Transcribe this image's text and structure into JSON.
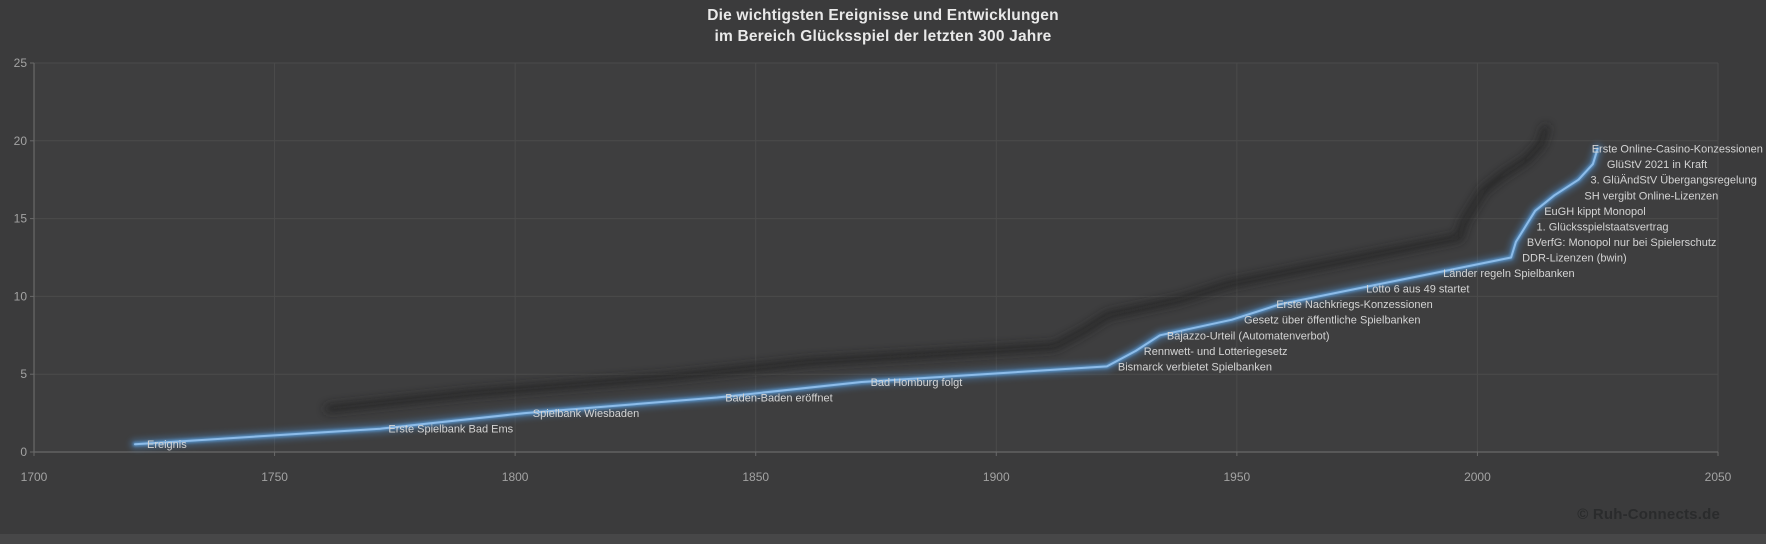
{
  "title": {
    "line1": "Die wichtigsten Ereignisse und Entwicklungen",
    "line2": "im Bereich Glücksspiel der letzten 300 Jahre"
  },
  "footer": {
    "copyright": "© Ruh-Connects.de"
  },
  "chart_data": {
    "type": "line",
    "title": "Die wichtigsten Ereignisse und Entwicklungen im Bereich Glücksspiel der letzten 300 Jahre",
    "xlabel": "",
    "ylabel": "",
    "xlim": [
      1700,
      2050
    ],
    "ylim": [
      0,
      25
    ],
    "x_ticks": [
      1700,
      1750,
      1800,
      1850,
      1900,
      1950,
      2000,
      2050
    ],
    "y_ticks": [
      0,
      5,
      10,
      15,
      20,
      25
    ],
    "grid": true,
    "legend_position": "none",
    "series": [
      {
        "name": "Ereignis",
        "points": [
          {
            "year": 1721,
            "value": 0.5,
            "label": "Ereignis"
          },
          {
            "year": 1772,
            "value": 1.5,
            "label": "Erste Spielbank Bad Ems"
          },
          {
            "year": 1802,
            "value": 2.5,
            "label": "Spielbank Wiesbaden"
          },
          {
            "year": 1842,
            "value": 3.5,
            "label": "Baden-Baden eröffnet"
          },
          {
            "year": 1872,
            "value": 4.5,
            "label": "Bad Homburg folgt"
          },
          {
            "year": 1923,
            "value": 5.5,
            "label": "Bismarck verbietet Spielbanken"
          },
          {
            "year": 1929,
            "value": 6.5,
            "label": "Rennwett- und Lotteriegesetz"
          },
          {
            "year": 1934,
            "value": 7.5,
            "label": "Bajazzo-Urteil (Automatenverbot)"
          },
          {
            "year": 1949,
            "value": 8.5,
            "label": "Gesetz über öffentliche Spielbanken"
          },
          {
            "year": 1959,
            "value": 9.5,
            "label": "Erste Nachkriegs-Konzessionen"
          },
          {
            "year": 1975,
            "value": 10.5,
            "label": "Lotto 6 aus 49 startet"
          },
          {
            "year": 1991,
            "value": 11.5,
            "label": "Länder regeln Spielbanken"
          },
          {
            "year": 2007,
            "value": 12.5,
            "label": "DDR-Lizenzen (bwin)"
          },
          {
            "year": 2008,
            "value": 13.5,
            "label": "BVerfG: Monopol nur bei Spielerschutz"
          },
          {
            "year": 2010,
            "value": 14.5,
            "label": "1. Glücksspielstaatsvertrag"
          },
          {
            "year": 2012,
            "value": 15.5,
            "label": "EuGH kippt Monopol"
          },
          {
            "year": 2016,
            "value": 16.5,
            "label": "SH vergibt Online-Lizenzen"
          },
          {
            "year": 2021,
            "value": 17.5,
            "label": "3. GlüÄndStV Übergangsregelung"
          },
          {
            "year": 2024,
            "value": 18.5,
            "label": "GlüStV 2021 in Kraft"
          },
          {
            "year": 2025,
            "value": 19.5,
            "label": "Erste Online-Casino-Konzessionen"
          }
        ]
      }
    ],
    "colors": {
      "line": "#5b9bd5",
      "line_core": "#8dbce9",
      "glow": "#4e86bf",
      "shadow": "#222222",
      "label": "#d4d4d4",
      "tick": "#a3a3a3",
      "grid": "#4b4b4b",
      "axis": "#696969",
      "background": "#3b3b3c",
      "plot_background": "#3e3e3f",
      "title": "#e9e9e9",
      "copyright": "#2a2b2c"
    },
    "layout_hints": {
      "label_position": "right-of-point",
      "label_dx": [
        12,
        8,
        8,
        8,
        9,
        11,
        8,
        7,
        12,
        -4,
        9,
        9,
        11,
        11,
        11,
        9,
        30,
        12,
        14,
        -6
      ],
      "shadow_offset": [
        -52,
        -20
      ]
    }
  }
}
